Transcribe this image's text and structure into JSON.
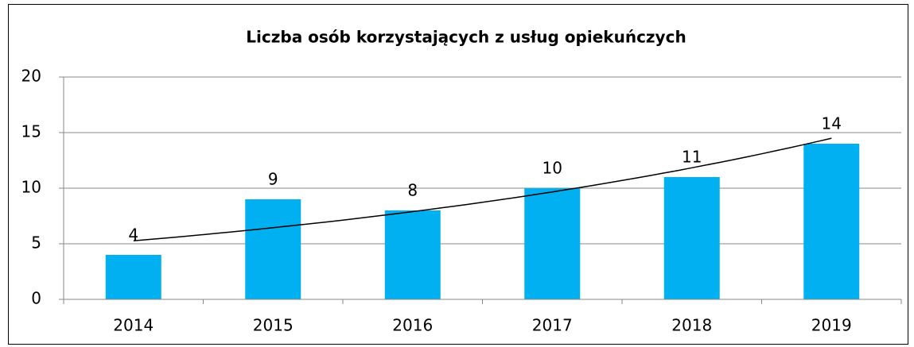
{
  "chart_data": {
    "type": "bar",
    "title": "Liczba osób korzystających z usług opiekuńczych",
    "categories": [
      "2014",
      "2015",
      "2016",
      "2017",
      "2018",
      "2019"
    ],
    "values": [
      4,
      9,
      8,
      10,
      11,
      14
    ],
    "color": "#00b0f0",
    "ylim": [
      0,
      20
    ],
    "yticks": [
      0,
      5,
      10,
      15,
      20
    ],
    "grid": true,
    "trendline": "exponential"
  }
}
